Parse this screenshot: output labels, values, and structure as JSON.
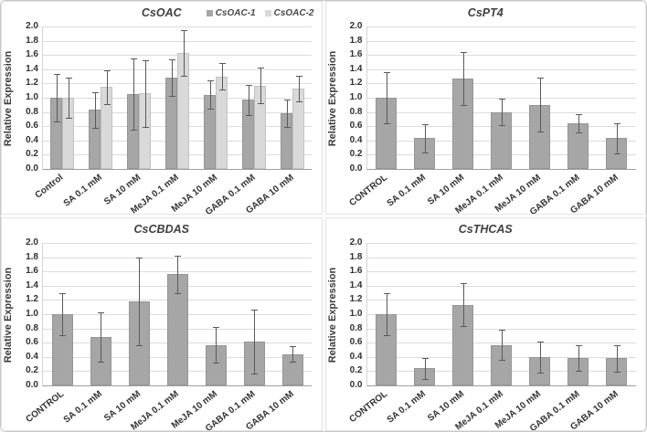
{
  "figure": {
    "background": "#ffffff",
    "border_color": "#c9c9c9",
    "gridline_color": "#dcdcdc",
    "error_bar_color": "#595959",
    "bar_color_primary": "#a6a6a6",
    "bar_color_secondary": "#d9d9d9"
  },
  "chart_data": [
    {
      "type": "bar",
      "title": "CsOAC",
      "ylabel": "Relative Expression",
      "ylim": [
        0,
        2.0
      ],
      "ytick_step": 0.2,
      "ytick_labels": [
        "0.0",
        "0.2",
        "0.4",
        "0.6",
        "0.8",
        "1.0",
        "1.2",
        "1.4",
        "1.6",
        "1.8",
        "2.0"
      ],
      "grid": true,
      "legend_position": "top-right",
      "categories": [
        "Control",
        "SA 0.1 mM",
        "SA 10 mM",
        "MeJA 0.1 mM",
        "MeJA 10 mM",
        "GABA 0.1 mM",
        "GABA 10 mM"
      ],
      "series": [
        {
          "name": "CsOAC-1",
          "color": "#a6a6a6",
          "values": [
            1.0,
            0.83,
            1.05,
            1.28,
            1.04,
            0.97,
            0.78
          ],
          "errors": [
            0.33,
            0.25,
            0.5,
            0.26,
            0.2,
            0.21,
            0.19
          ]
        },
        {
          "name": "CsOAC-2",
          "color": "#d9d9d9",
          "values": [
            1.0,
            1.15,
            1.06,
            1.63,
            1.3,
            1.17,
            1.13
          ],
          "errors": [
            0.28,
            0.24,
            0.47,
            0.32,
            0.19,
            0.25,
            0.18
          ]
        }
      ]
    },
    {
      "type": "bar",
      "title": "CsPT4",
      "ylabel": "Relative Expression",
      "ylim": [
        0,
        2.0
      ],
      "ytick_step": 0.2,
      "ytick_labels": [
        "0.0",
        "0.2",
        "0.4",
        "0.6",
        "0.8",
        "1.0",
        "1.2",
        "1.4",
        "1.6",
        "1.8",
        "2.0"
      ],
      "grid": true,
      "categories": [
        "CONTROL",
        "SA 0.1 mM",
        "SA 10 mM",
        "MeJA 0.1 mM",
        "MeJA 10 mM",
        "GABA 0.1 mM",
        "GABA 10 mM"
      ],
      "series": [
        {
          "name": "CsPT4",
          "color": "#a6a6a6",
          "values": [
            1.0,
            0.43,
            1.27,
            0.8,
            0.9,
            0.64,
            0.43
          ],
          "errors": [
            0.36,
            0.2,
            0.37,
            0.19,
            0.38,
            0.13,
            0.21
          ]
        }
      ]
    },
    {
      "type": "bar",
      "title": "CsCBDAS",
      "ylabel": "Relative Expression",
      "ylim": [
        0,
        2.0
      ],
      "ytick_step": 0.2,
      "ytick_labels": [
        "0.0",
        "0.2",
        "0.4",
        "0.6",
        "0.8",
        "1.0",
        "1.2",
        "1.4",
        "1.6",
        "1.8",
        "2.0"
      ],
      "grid": true,
      "categories": [
        "CONTROL",
        "SA 0.1 mM",
        "SA 10 mM",
        "MeJA 0.1 mM",
        "MeJA 10 mM",
        "GABA 0.1 mM",
        "GABA 10 mM"
      ],
      "series": [
        {
          "name": "CsCBDAS",
          "color": "#a6a6a6",
          "values": [
            1.0,
            0.68,
            1.18,
            1.56,
            0.57,
            0.62,
            0.44
          ],
          "errors": [
            0.29,
            0.35,
            0.62,
            0.26,
            0.25,
            0.45,
            0.11
          ]
        }
      ]
    },
    {
      "type": "bar",
      "title": "CsTHCAS",
      "ylabel": "Relative Expression",
      "ylim": [
        0,
        2.0
      ],
      "ytick_step": 0.2,
      "ytick_labels": [
        "0.0",
        "0.2",
        "0.4",
        "0.6",
        "0.8",
        "1.0",
        "1.2",
        "1.4",
        "1.6",
        "1.8",
        "2.0"
      ],
      "grid": true,
      "categories": [
        "CONTROL",
        "SA 0.1 mM",
        "SA 10 mM",
        "MeJA 0.1 mM",
        "MeJA 10 mM",
        "GABA 0.1 mM",
        "GABA 10 mM"
      ],
      "series": [
        {
          "name": "CsTHCAS",
          "color": "#a6a6a6",
          "values": [
            1.0,
            0.24,
            1.13,
            0.57,
            0.4,
            0.39,
            0.38
          ],
          "errors": [
            0.3,
            0.15,
            0.3,
            0.21,
            0.22,
            0.18,
            0.19
          ]
        }
      ]
    }
  ]
}
